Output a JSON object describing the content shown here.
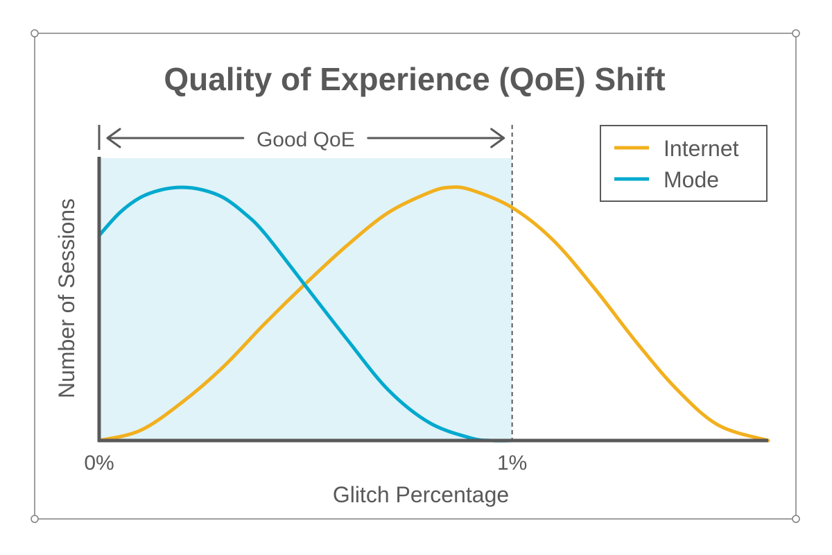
{
  "colors": {
    "internet": "#F2B01E",
    "mode": "#00A9CE",
    "good_region": "#E0F3F8",
    "axis": "#595959",
    "text": "#595959",
    "frame": "#7f7f7f"
  },
  "chart_data": {
    "type": "line",
    "title": "Quality of Experience (QoE) Shift",
    "xlabel": "Glitch Percentage",
    "ylabel": "Number of Sessions",
    "x_ticks": [
      "0%",
      "1%"
    ],
    "xlim": [
      0,
      1.62
    ],
    "ylim": [
      0,
      1
    ],
    "grid": false,
    "legend_position": "top-right",
    "annotation": {
      "label": "Good QoE",
      "x_range": [
        0,
        1
      ]
    },
    "series": [
      {
        "name": "Internet",
        "color": "#F2B01E",
        "x": [
          0,
          0.1,
          0.2,
          0.3,
          0.4,
          0.5,
          0.6,
          0.7,
          0.8,
          0.85,
          0.9,
          1.0,
          1.1,
          1.2,
          1.3,
          1.4,
          1.5,
          1.62
        ],
        "y": [
          0,
          0.04,
          0.15,
          0.29,
          0.46,
          0.62,
          0.77,
          0.9,
          0.98,
          1.0,
          0.99,
          0.92,
          0.79,
          0.6,
          0.39,
          0.2,
          0.06,
          0
        ]
      },
      {
        "name": "Mode",
        "color": "#00A9CE",
        "x": [
          0,
          0.05,
          0.1,
          0.15,
          0.2,
          0.25,
          0.3,
          0.35,
          0.4,
          0.5,
          0.6,
          0.7,
          0.8,
          0.9,
          0.95,
          1.0
        ],
        "y": [
          0.81,
          0.9,
          0.96,
          0.99,
          1.0,
          0.99,
          0.96,
          0.9,
          0.82,
          0.61,
          0.4,
          0.2,
          0.07,
          0.01,
          0.0,
          0
        ]
      }
    ]
  }
}
